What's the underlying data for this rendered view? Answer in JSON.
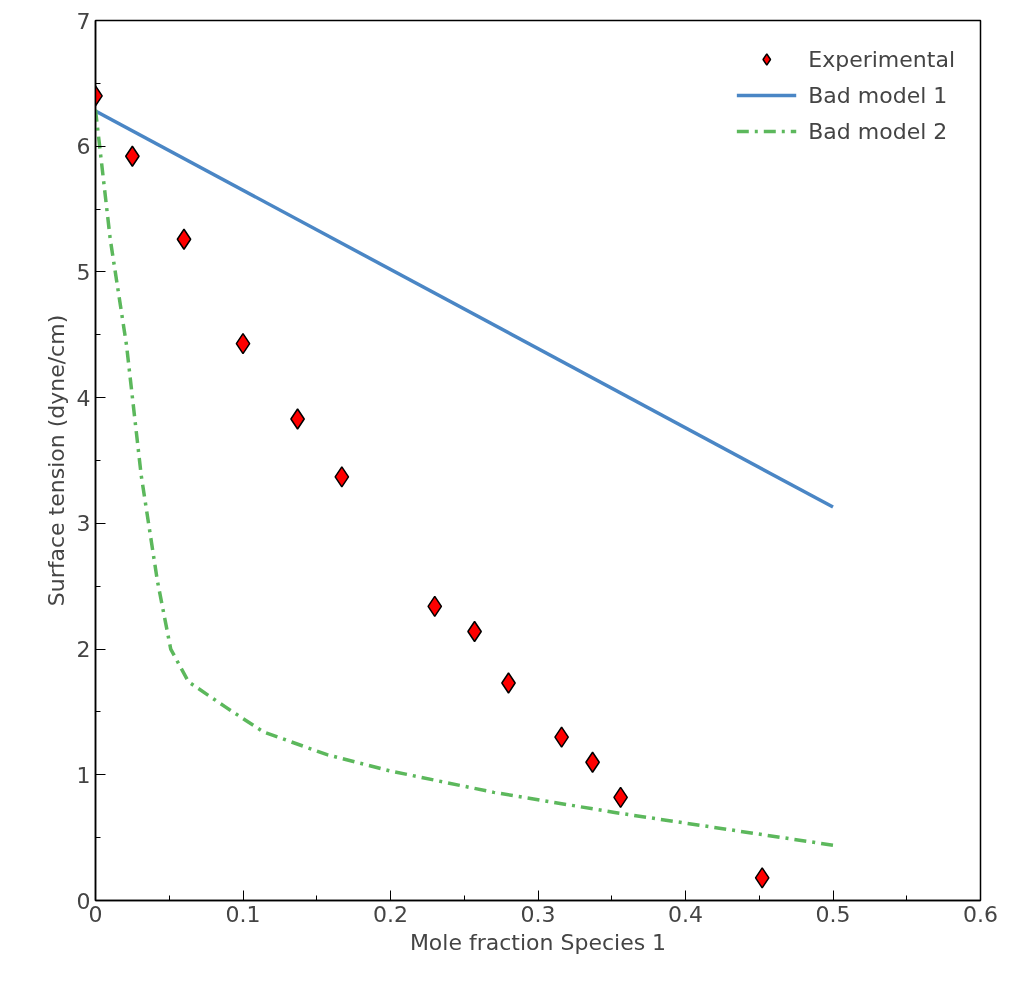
{
  "chart_data": {
    "type": "scatter",
    "xlabel": "Mole fraction Species 1",
    "ylabel": "Surface tension (dyne/cm)",
    "xlim": [
      0,
      0.6
    ],
    "xticks": [
      0,
      0.1,
      0.2,
      0.3,
      0.4,
      0.5,
      0.6
    ],
    "ylim": [
      0,
      7
    ],
    "yticks": [
      0,
      1,
      2,
      3,
      4,
      5,
      6,
      7
    ],
    "grid": false,
    "legend": "top right",
    "series": [
      {
        "name": "Experimental",
        "type": "scatter",
        "marker": "diamond",
        "color": "#ff0000",
        "x": [
          0,
          0.025,
          0.06,
          0.1,
          0.137,
          0.167,
          0.23,
          0.257,
          0.28,
          0.316,
          0.337,
          0.356,
          0.452
        ],
        "values": [
          6.4,
          5.92,
          5.26,
          4.43,
          3.83,
          3.37,
          2.34,
          2.14,
          1.73,
          1.3,
          1.1,
          0.82,
          0.18
        ]
      },
      {
        "name": "Bad model 1",
        "type": "line",
        "line_style": "solid",
        "color": "#4a86c5",
        "x": [
          0,
          0.5
        ],
        "values": [
          6.28,
          3.13
        ]
      },
      {
        "name": "Bad model 2",
        "type": "line",
        "line_style": "dashdot",
        "color": "#5cb85c",
        "x": [
          0,
          0.01,
          0.021,
          0.031,
          0.042,
          0.051,
          0.063,
          0.088,
          0.114,
          0.157,
          0.2,
          0.27,
          0.352,
          0.5
        ],
        "values": [
          6.29,
          5.26,
          4.42,
          3.38,
          2.54,
          2.0,
          1.74,
          1.54,
          1.34,
          1.16,
          1.03,
          0.86,
          0.7,
          0.44
        ]
      }
    ]
  }
}
